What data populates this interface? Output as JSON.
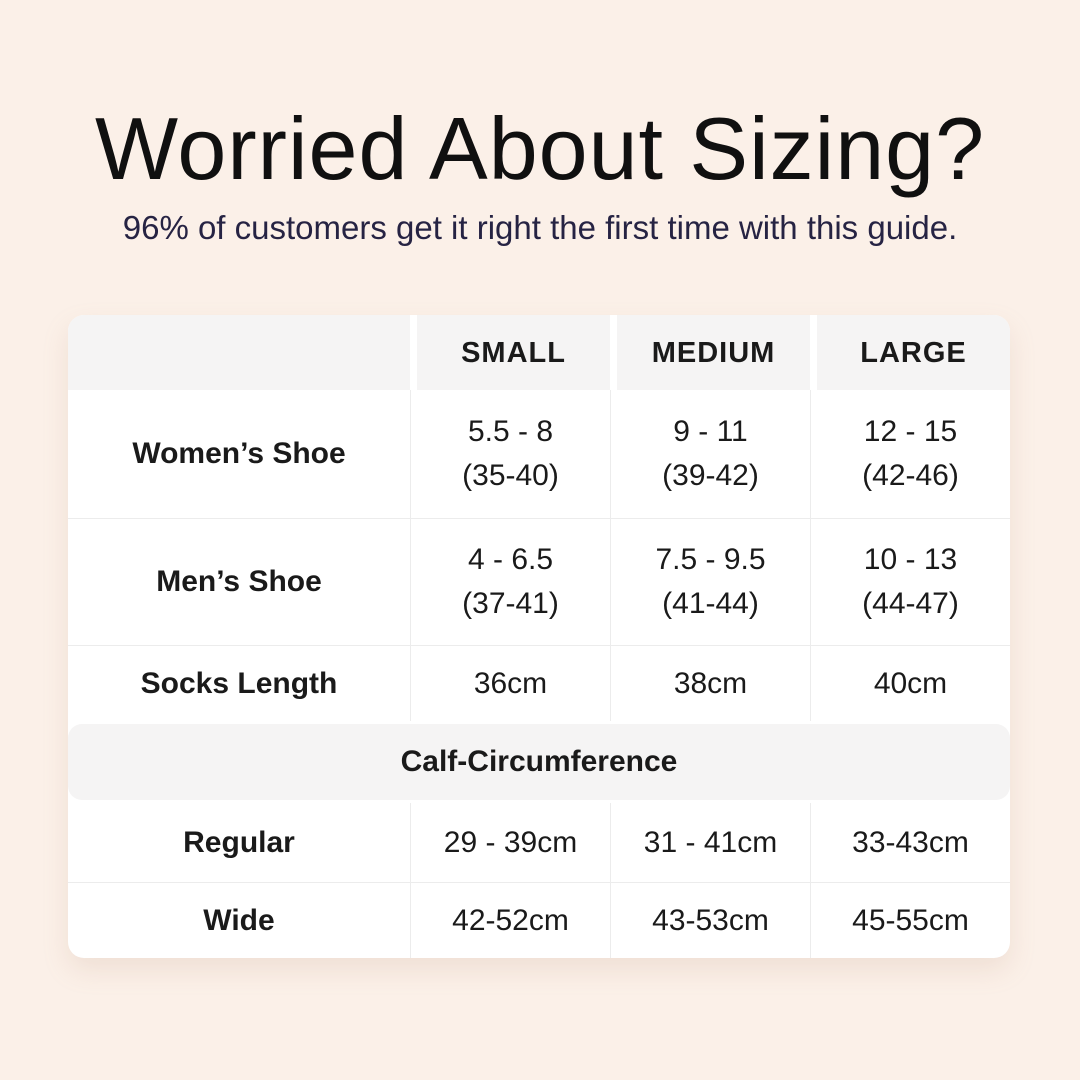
{
  "page": {
    "background_color": "#fbf0e8",
    "title_color": "#101010",
    "subtitle_color": "#262343",
    "card_bg": "#ffffff",
    "header_bg": "#f5f4f4",
    "grid_line_color": "#ececec"
  },
  "header": {
    "title": "Worried About Sizing?",
    "subtitle": "96% of customers get it right the first time with this guide."
  },
  "table": {
    "columns": [
      "",
      "SMALL",
      "MEDIUM",
      "LARGE"
    ],
    "rows": [
      {
        "label": "Women’s Shoe",
        "values": [
          [
            "5.5 - 8",
            "(35-40)"
          ],
          [
            "9 - 11",
            "(39-42)"
          ],
          [
            "12 - 15",
            "(42-46)"
          ]
        ]
      },
      {
        "label": "Men’s Shoe",
        "values": [
          [
            "4 - 6.5",
            "(37-41)"
          ],
          [
            "7.5 - 9.5",
            "(41-44)"
          ],
          [
            "10 - 13",
            "(44-47)"
          ]
        ]
      },
      {
        "label": "Socks Length",
        "values": [
          [
            "36cm"
          ],
          [
            "38cm"
          ],
          [
            "40cm"
          ]
        ]
      }
    ],
    "section": {
      "title": "Calf-Circumference"
    },
    "section_rows": [
      {
        "label": "Regular",
        "values": [
          [
            "29 - 39cm"
          ],
          [
            "31 - 41cm"
          ],
          [
            "33-43cm"
          ]
        ]
      },
      {
        "label": "Wide",
        "values": [
          [
            "42-52cm"
          ],
          [
            "43-53cm"
          ],
          [
            "45-55cm"
          ]
        ]
      }
    ]
  }
}
